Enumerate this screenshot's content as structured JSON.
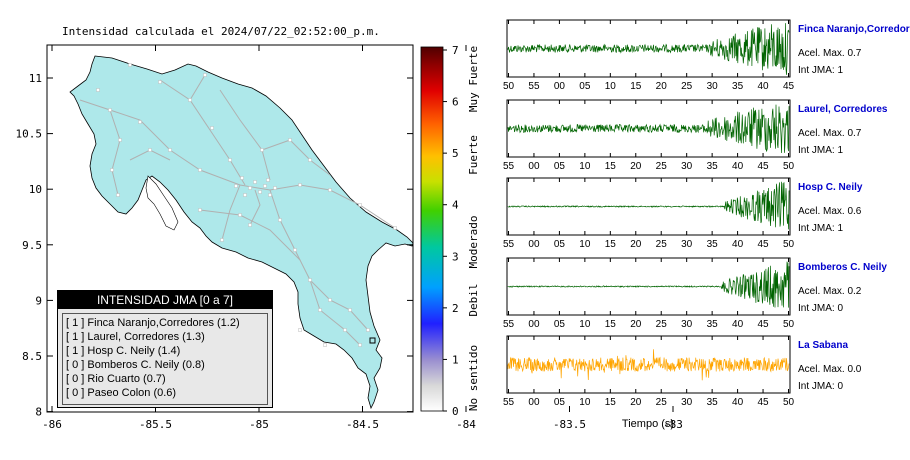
{
  "map": {
    "title": "Intensidad calculada el 2024/07/22_02:52:00_p.m.",
    "x_ticks": [
      "-86",
      "-85.5",
      "-85",
      "-84.5",
      "-84",
      "-83.5",
      "-83"
    ],
    "y_ticks": [
      "11",
      "10.5",
      "10",
      "9.5",
      "9",
      "8.5",
      "8"
    ],
    "land_color": "#aee8ea",
    "road_color": "#b0b0b0"
  },
  "legend": {
    "title": "INTENSIDAD JMA [0 a 7]",
    "items": [
      {
        "level": "[ 1 ]",
        "text": "Finca Naranjo,Corredores (1.2)"
      },
      {
        "level": "[ 1 ]",
        "text": "Laurel, Corredores (1.3)"
      },
      {
        "level": "[ 1 ]",
        "text": "Hosp C. Neily (1.4)"
      },
      {
        "level": "[ 0 ]",
        "text": "Bomberos C. Neily (0.8)"
      },
      {
        "level": "[ 0 ]",
        "text": "Rio Cuarto (0.7)"
      },
      {
        "level": "[ 0 ]",
        "text": "Paseo Colon (0.6)"
      }
    ]
  },
  "colorbar": {
    "ticks": [
      "7",
      "6",
      "5",
      "4",
      "3",
      "2",
      "1",
      "0"
    ],
    "labels": [
      "Muy Fuerte",
      "Fuerte",
      "Moderado",
      "Debil",
      "No sentido"
    ]
  },
  "waveforms": {
    "xlabel": "Tiempo (s)",
    "panels": [
      {
        "station": "Finca Naranjo,Corredores",
        "acel": "Acel. Max. 0.7",
        "int": "Int JMA: 1",
        "color": "#006400",
        "onset": 0.72,
        "ticks": [
          "50",
          "55",
          "00",
          "05",
          "10",
          "15",
          "20",
          "25",
          "30",
          "35",
          "40",
          "45"
        ]
      },
      {
        "station": "Laurel, Corredores",
        "acel": "Acel. Max. 0.7",
        "int": "Int JMA: 1",
        "color": "#006400",
        "onset": 0.7,
        "ticks": [
          "55",
          "00",
          "05",
          "10",
          "15",
          "20",
          "25",
          "30",
          "35",
          "40",
          "45",
          "50"
        ]
      },
      {
        "station": "Hosp C. Neily",
        "acel": "Acel. Max. 0.6",
        "int": "Int JMA: 1",
        "color": "#006400",
        "onset": 0.77,
        "ticks": [
          "55",
          "00",
          "05",
          "10",
          "15",
          "20",
          "25",
          "30",
          "35",
          "40",
          "45",
          "50"
        ]
      },
      {
        "station": "Bomberos C. Neily",
        "acel": "Acel. Max. 0.2",
        "int": "Int JMA: 0",
        "color": "#006400",
        "onset": 0.76,
        "ticks": [
          "55",
          "00",
          "05",
          "10",
          "15",
          "20",
          "25",
          "30",
          "35",
          "40",
          "45",
          "50"
        ]
      },
      {
        "station": "La Sabana",
        "acel": "Acel. Max. 0.0",
        "int": "Int JMA: 0",
        "color": "#ffa500",
        "onset": 0.0,
        "ticks": [
          "55",
          "00",
          "05",
          "10",
          "15",
          "20",
          "25",
          "30",
          "35",
          "40",
          "45",
          "50"
        ]
      }
    ]
  },
  "chart_data": {
    "type": "map",
    "title": "Intensidad calculada el 2024/07/22_02:52:00_p.m.",
    "xlim": [
      -86,
      -82.5
    ],
    "ylim": [
      8,
      11.3
    ],
    "legend_placement": "bottom-left",
    "stations": [
      {
        "name": "Finca Naranjo,Corredores",
        "level": 1,
        "value": 1.2
      },
      {
        "name": "Laurel, Corredores",
        "level": 1,
        "value": 1.3
      },
      {
        "name": "Hosp C. Neily",
        "level": 1,
        "value": 1.4
      },
      {
        "name": "Bomberos C. Neily",
        "level": 0,
        "value": 0.8
      },
      {
        "name": "Rio Cuarto",
        "level": 0,
        "value": 0.7
      },
      {
        "name": "Paseo Colon",
        "level": 0,
        "value": 0.6
      }
    ]
  }
}
